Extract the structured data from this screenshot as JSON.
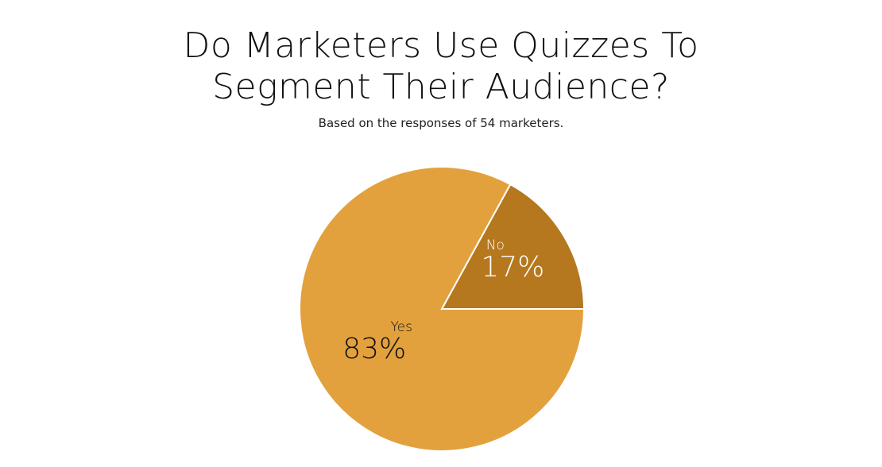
{
  "chart_data": {
    "type": "pie",
    "title_lines": [
      "Do Marketers Use Quizzes To",
      "Segment Their Audience?"
    ],
    "subtitle": "Based on the responses of 54 marketers.",
    "slices": [
      {
        "label": "No",
        "value": 17,
        "display": "17%",
        "color": "#B5781E",
        "text_color": "#ffffff"
      },
      {
        "label": "Yes",
        "value": 83,
        "display": "83%",
        "color": "#E3A13D",
        "text_color": "#111111"
      }
    ]
  }
}
